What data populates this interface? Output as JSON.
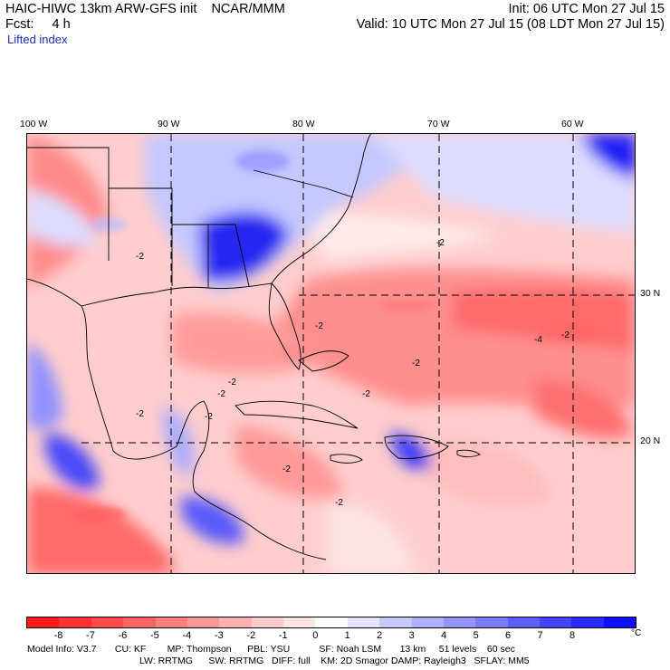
{
  "header": {
    "model_title": "HAIC-HIWC 13km ARW-GFS init    NCAR/MMM",
    "init_time": "Init: 06 UTC Mon 27 Jul 15",
    "forecast": "Fcst:     4 h",
    "valid_time": "Valid: 10 UTC Mon 27 Jul 15 (08 LDT Mon 27 Jul 15)",
    "field_name": "Lifted index"
  },
  "map": {
    "lon_labels": [
      "100 W",
      "90 W",
      "80 W",
      "70 W",
      "60 W"
    ],
    "lat_labels": [
      "30 N",
      "20 N"
    ],
    "contour_labels": [
      "-2",
      "-2",
      "-2",
      "-2",
      "-2",
      "-2",
      "-2",
      "-2",
      "-2",
      "-2",
      "-2",
      "-2",
      "-4"
    ]
  },
  "colorbar": {
    "tick_labels": [
      "-8",
      "-7",
      "-6",
      "-5",
      "-4",
      "-3",
      "-2",
      "-1",
      "0",
      "1",
      "2",
      "3",
      "4",
      "5",
      "6",
      "7",
      "8"
    ],
    "unit": "°C",
    "colors": [
      "#ff1a1a",
      "#ff3232",
      "#ff4a4a",
      "#ff6464",
      "#ff7e7e",
      "#ff9696",
      "#ffb0b0",
      "#ffcaca",
      "#ffe4e4",
      "#ffffff",
      "#e4e4ff",
      "#c8c8ff",
      "#aeaeff",
      "#9494ff",
      "#7a7aff",
      "#5e5eff",
      "#4444ff",
      "#2a2aff",
      "#0f0fff"
    ]
  },
  "model_info": {
    "line1": "Model Info: V3.7       CU: KF        MP: Thompson      PBL: YSU           SF: Noah LSM       13 km     51 levels    60 sec",
    "line2": "LW: RRTMG      SW: RRTMG   DIFF: full    KM: 2D Smagor DAMP: Rayleigh3   SFLAY: MM5"
  }
}
